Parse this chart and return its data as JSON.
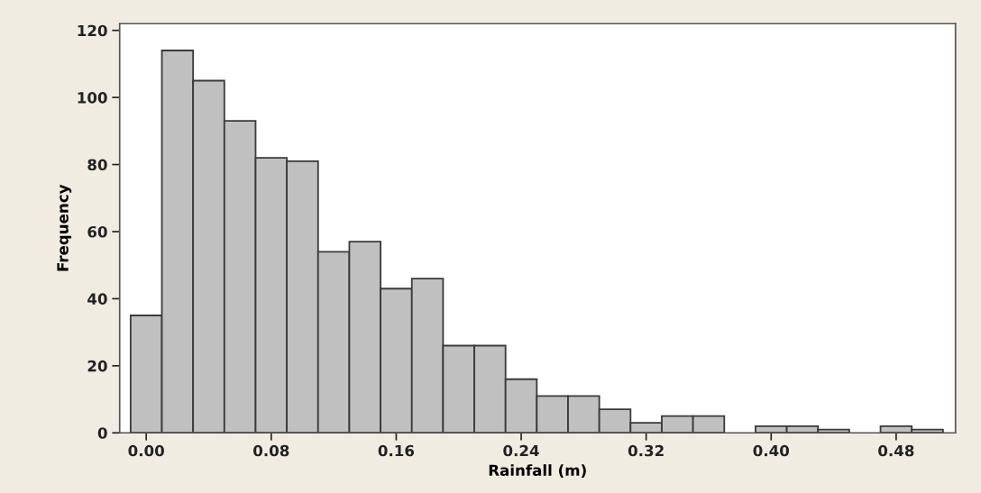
{
  "chart_data": {
    "type": "histogram",
    "xlabel": "Rainfall (m)",
    "ylabel": "Frequency",
    "bins": [
      -0.01,
      0.01,
      0.03,
      0.05,
      0.07,
      0.09,
      0.11,
      0.13,
      0.15,
      0.17,
      0.19,
      0.21,
      0.23,
      0.25,
      0.27,
      0.29,
      0.31,
      0.33,
      0.35,
      0.37,
      0.39,
      0.41,
      0.43,
      0.45,
      0.47,
      0.49,
      0.51
    ],
    "values": [
      35,
      114,
      105,
      93,
      82,
      81,
      54,
      57,
      43,
      46,
      26,
      26,
      16,
      11,
      11,
      7,
      3,
      5,
      5,
      0,
      2,
      2,
      1,
      0,
      2,
      1
    ],
    "color": "#c0c0c0",
    "xlim": [
      -0.017,
      0.518
    ],
    "ylim": [
      0,
      122
    ],
    "xticks": [
      {
        "value": 0,
        "label": "0.00"
      },
      {
        "value": 0.08,
        "label": "0.08"
      },
      {
        "value": 0.16,
        "label": "0.16"
      },
      {
        "value": 0.24,
        "label": "0.24"
      },
      {
        "value": 0.32,
        "label": "0.32"
      },
      {
        "value": 0.4,
        "label": "0.40"
      },
      {
        "value": 0.48,
        "label": "0.48"
      }
    ],
    "yticks": [
      0,
      20,
      40,
      60,
      80,
      100,
      120
    ],
    "grid": false,
    "legend": false
  }
}
